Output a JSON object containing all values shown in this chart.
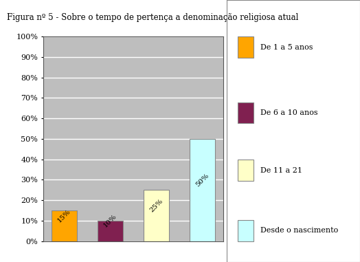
{
  "title": "Figura nº 5 - Sobre o tempo de pertença a denominação religiosa atual",
  "categories": [
    "De 1 a 5 anos",
    "De 6 a 10 anos",
    "De 11 a 21",
    "Desde o nascimento"
  ],
  "values": [
    15,
    10,
    25,
    50
  ],
  "labels": [
    "15%",
    "10%",
    "25%",
    "50%"
  ],
  "bar_colors": [
    "#FFA500",
    "#802050",
    "#FFFFC8",
    "#C8FFFF"
  ],
  "bar_edge_colors": [
    "#888888",
    "#888888",
    "#888888",
    "#888888"
  ],
  "legend_labels": [
    "De 1 a 5 anos",
    "De 6 a 10 anos",
    "De 11 a 21",
    "Desde o nascimento"
  ],
  "ylim": [
    0,
    100
  ],
  "yticks": [
    0,
    10,
    20,
    30,
    40,
    50,
    60,
    70,
    80,
    90,
    100
  ],
  "ytick_labels": [
    "0%",
    "10%",
    "20%",
    "30%",
    "40%",
    "50%",
    "60%",
    "70%",
    "80%",
    "90%",
    "100%"
  ],
  "plot_bg_color": "#BEBEBE",
  "outer_bg_color": "#FFFFFF",
  "title_fontsize": 8.5,
  "label_fontsize": 7.5,
  "tick_fontsize": 8,
  "legend_fontsize": 8,
  "bar_width": 0.55,
  "label_rotation": 45,
  "grid_color": "#FFFFFF",
  "grid_linewidth": 1.0
}
